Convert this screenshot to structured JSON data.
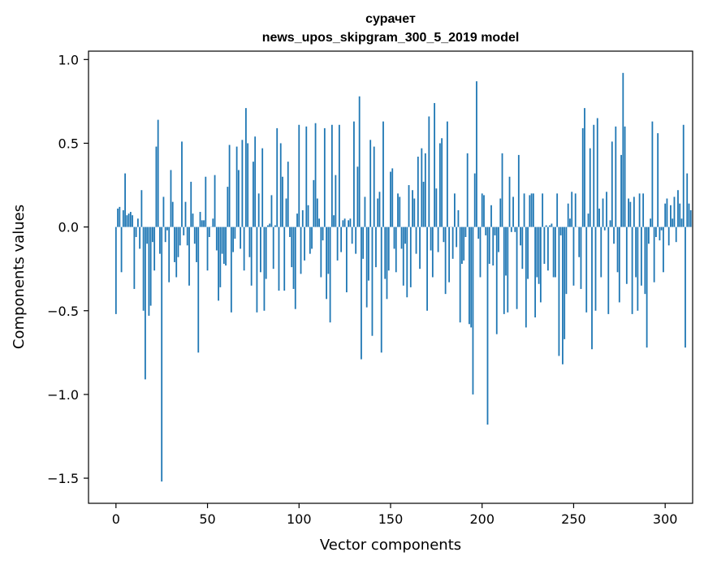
{
  "chart_data": {
    "type": "bar",
    "title": "сурачет",
    "subtitle": "news_upos_skipgram_300_5_2019 model",
    "xlabel": "Vector components",
    "ylabel": "Components values",
    "xlim": [
      -15,
      315
    ],
    "ylim": [
      -1.65,
      1.05
    ],
    "xticks": [
      0,
      50,
      100,
      150,
      200,
      250,
      300
    ],
    "xtick_labels": [
      "0",
      "50",
      "100",
      "150",
      "200",
      "250",
      "300"
    ],
    "yticks": [
      -1.5,
      -1.0,
      -0.5,
      0.0,
      0.5,
      1.0
    ],
    "ytick_labels": [
      "−1.5",
      "−1.0",
      "−0.5",
      "0.0",
      "0.5",
      "1.0"
    ],
    "grid": false,
    "color": "#1f77b4",
    "values": [
      -0.52,
      0.11,
      0.12,
      -0.27,
      0.1,
      0.32,
      0.07,
      0.08,
      0.09,
      0.07,
      -0.37,
      -0.06,
      0.05,
      -0.13,
      0.22,
      -0.5,
      -0.91,
      -0.1,
      -0.53,
      -0.47,
      -0.09,
      -0.26,
      0.48,
      0.64,
      -0.16,
      -1.52,
      0.18,
      -0.09,
      -0.02,
      -0.33,
      0.34,
      0.15,
      -0.21,
      -0.3,
      -0.18,
      -0.11,
      0.51,
      -0.05,
      0.15,
      -0.11,
      -0.35,
      0.27,
      0.08,
      -0.1,
      -0.21,
      -0.75,
      0.09,
      0.04,
      0.04,
      0.3,
      -0.26,
      -0.06,
      0.0,
      0.05,
      0.31,
      -0.14,
      -0.44,
      -0.36,
      -0.16,
      -0.22,
      -0.23,
      0.24,
      0.49,
      -0.51,
      -0.15,
      -0.07,
      0.48,
      0.34,
      -0.13,
      0.52,
      -0.26,
      0.71,
      0.5,
      -0.18,
      -0.35,
      0.39,
      0.54,
      -0.51,
      0.2,
      -0.27,
      0.47,
      -0.5,
      -0.31,
      0.01,
      0.02,
      0.19,
      -0.25,
      0.01,
      0.59,
      -0.38,
      0.5,
      0.3,
      -0.38,
      0.17,
      0.39,
      -0.06,
      -0.24,
      -0.37,
      -0.49,
      0.08,
      0.61,
      -0.28,
      0.1,
      -0.2,
      0.6,
      0.13,
      -0.16,
      -0.13,
      0.28,
      0.62,
      0.17,
      0.05,
      -0.3,
      -0.08,
      0.59,
      -0.43,
      -0.28,
      -0.57,
      0.61,
      0.07,
      0.31,
      -0.2,
      0.61,
      -0.15,
      0.04,
      0.05,
      -0.39,
      0.04,
      0.05,
      -0.1,
      0.63,
      -0.16,
      0.36,
      0.78,
      -0.79,
      -0.19,
      0.18,
      -0.48,
      -0.32,
      0.52,
      -0.65,
      0.48,
      -0.24,
      0.17,
      0.21,
      -0.75,
      0.63,
      -0.31,
      -0.43,
      -0.26,
      0.33,
      0.35,
      -0.13,
      -0.27,
      0.2,
      0.18,
      -0.13,
      -0.35,
      -0.1,
      -0.42,
      0.25,
      -0.36,
      0.22,
      0.17,
      -0.16,
      0.42,
      -0.25,
      0.47,
      0.27,
      0.44,
      -0.5,
      0.66,
      -0.14,
      -0.3,
      0.74,
      0.23,
      -0.15,
      0.5,
      0.53,
      -0.09,
      -0.4,
      0.63,
      -0.33,
      0.0,
      -0.19,
      0.2,
      -0.12,
      0.1,
      -0.57,
      -0.22,
      -0.2,
      -0.06,
      0.44,
      -0.58,
      -0.6,
      -1.0,
      0.32,
      0.87,
      -0.07,
      -0.3,
      0.2,
      0.19,
      -0.05,
      -1.18,
      -0.22,
      0.13,
      -0.23,
      -0.05,
      -0.64,
      -0.15,
      0.17,
      0.44,
      -0.52,
      -0.29,
      -0.51,
      0.3,
      -0.03,
      0.18,
      -0.03,
      -0.49,
      0.43,
      -0.11,
      -0.25,
      0.2,
      -0.6,
      -0.31,
      0.19,
      0.2,
      0.2,
      -0.54,
      -0.3,
      -0.34,
      -0.45,
      0.2,
      -0.22,
      0.01,
      -0.26,
      0.01,
      0.02,
      -0.3,
      -0.3,
      0.2,
      -0.77,
      -0.05,
      -0.82,
      -0.67,
      -0.4,
      0.14,
      0.05,
      0.21,
      -0.35,
      0.2,
      0.0,
      -0.18,
      -0.37,
      0.59,
      0.71,
      -0.51,
      0.08,
      0.47,
      -0.73,
      0.61,
      -0.5,
      0.65,
      0.11,
      -0.3,
      0.17,
      -0.02,
      0.21,
      -0.52,
      0.04,
      0.51,
      -0.1,
      0.6,
      -0.27,
      -0.45,
      0.43,
      0.92,
      0.6,
      -0.34,
      0.17,
      0.15,
      -0.52,
      0.18,
      -0.3,
      -0.5,
      0.2,
      -0.35,
      0.2,
      -0.4,
      -0.72,
      -0.1,
      0.05,
      0.63,
      -0.33,
      -0.06,
      0.56,
      -0.08,
      -0.02,
      -0.27,
      0.14,
      0.17,
      -0.11,
      0.13,
      0.05,
      0.18,
      -0.09,
      0.22,
      0.14,
      0.05,
      0.61,
      -0.72,
      0.32,
      0.14,
      0.1
    ]
  }
}
